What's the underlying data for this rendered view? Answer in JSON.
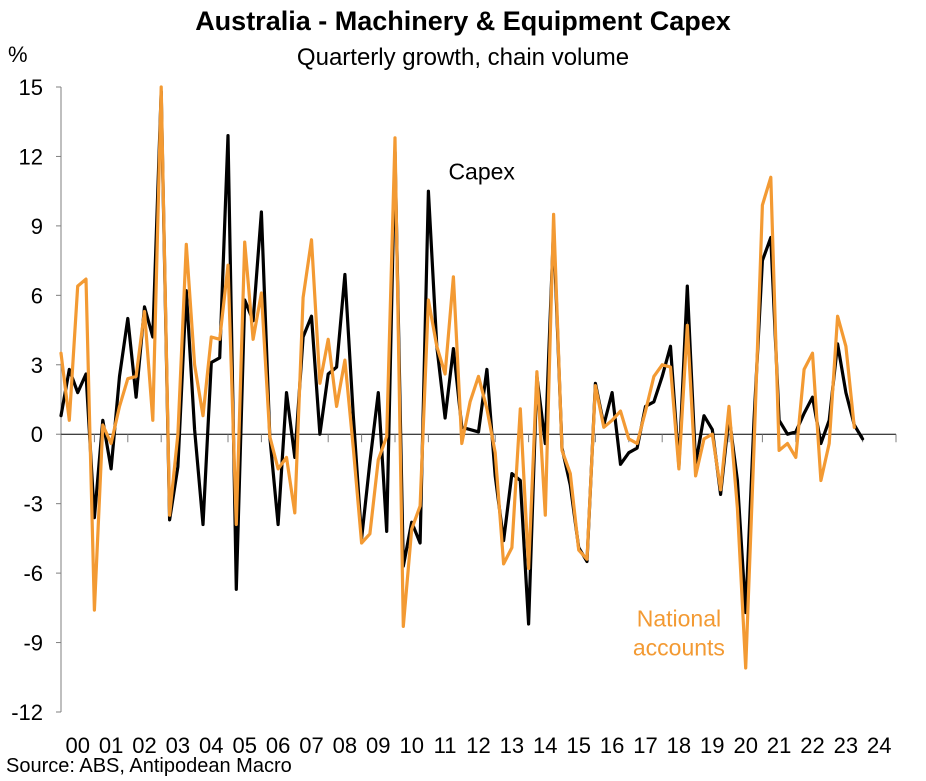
{
  "chart_data": {
    "type": "line",
    "title": "Australia - Machinery & Equipment Capex",
    "subtitle": "Quarterly growth, chain volume",
    "ylabel": "%",
    "ylim": [
      -12,
      15
    ],
    "yticks": [
      15,
      12,
      9,
      6,
      3,
      0,
      -3,
      -6,
      -9,
      -12
    ],
    "xlim": [
      2000,
      2025
    ],
    "xtick_labels": [
      "00",
      "01",
      "02",
      "03",
      "04",
      "05",
      "06",
      "07",
      "08",
      "09",
      "10",
      "11",
      "12",
      "13",
      "14",
      "15",
      "16",
      "17",
      "18",
      "19",
      "20",
      "21",
      "22",
      "23",
      "24"
    ],
    "grid": false,
    "series": [
      {
        "name": "Capex",
        "color": "#000000",
        "x": [
          2000.0,
          2000.25,
          2000.5,
          2000.75,
          2001.0,
          2001.25,
          2001.5,
          2001.75,
          2002.0,
          2002.25,
          2002.5,
          2002.75,
          2003.0,
          2003.25,
          2003.5,
          2003.75,
          2004.0,
          2004.25,
          2004.5,
          2004.75,
          2005.0,
          2005.25,
          2005.5,
          2005.75,
          2006.0,
          2006.25,
          2006.5,
          2006.75,
          2007.0,
          2007.25,
          2007.5,
          2007.75,
          2008.0,
          2008.25,
          2008.5,
          2008.75,
          2009.0,
          2009.25,
          2009.5,
          2009.75,
          2010.0,
          2010.25,
          2010.5,
          2010.75,
          2011.0,
          2011.25,
          2011.5,
          2011.75,
          2012.0,
          2012.25,
          2012.5,
          2012.75,
          2013.0,
          2013.25,
          2013.5,
          2013.75,
          2014.0,
          2014.25,
          2014.5,
          2014.75,
          2015.0,
          2015.25,
          2015.5,
          2015.75,
          2016.0,
          2016.25,
          2016.5,
          2016.75,
          2017.0,
          2017.25,
          2017.5,
          2017.75,
          2018.0,
          2018.25,
          2018.5,
          2018.75,
          2019.0,
          2019.25,
          2019.5,
          2019.75,
          2020.0,
          2020.25,
          2020.5,
          2020.75,
          2021.0,
          2021.25,
          2021.5,
          2021.75,
          2022.0,
          2022.25,
          2022.5,
          2022.75,
          2023.0,
          2023.25,
          2023.5,
          2023.75,
          2024.0
        ],
        "values": [
          0.8,
          2.8,
          1.8,
          2.6,
          -3.6,
          0.6,
          -1.5,
          2.5,
          5.0,
          1.6,
          5.5,
          4.2,
          14.8,
          -3.7,
          -1.4,
          6.2,
          0.2,
          -3.9,
          3.1,
          3.3,
          12.9,
          -6.7,
          5.8,
          4.9,
          9.6,
          -0.1,
          -3.9,
          1.8,
          -1.0,
          4.2,
          5.1,
          0.0,
          2.6,
          2.9,
          6.9,
          0.8,
          -4.5,
          -1.2,
          1.8,
          -4.2,
          12.2,
          -5.7,
          -3.8,
          -4.7,
          10.5,
          3.8,
          0.7,
          3.7,
          0.3,
          0.2,
          0.1,
          2.8,
          -1.8,
          -4.6,
          -1.7,
          -2.0,
          -8.2,
          2.5,
          -0.4,
          8.9,
          -0.6,
          -2.2,
          -4.9,
          -5.5,
          2.2,
          0.4,
          1.8,
          -1.3,
          -0.8,
          -0.6,
          1.2,
          1.4,
          2.5,
          3.8,
          -1.4,
          6.4,
          -1.3,
          0.8,
          0.2,
          -2.6,
          0.8,
          -2.0,
          -7.7,
          0.6,
          7.5,
          8.5,
          0.6,
          0.0,
          0.1,
          0.9,
          1.6,
          -0.4,
          0.6,
          3.9,
          1.8,
          0.4,
          -0.2
        ]
      },
      {
        "name": "National accounts",
        "color": "#F39A33",
        "x": [
          2000.0,
          2000.25,
          2000.5,
          2000.75,
          2001.0,
          2001.25,
          2001.5,
          2001.75,
          2002.0,
          2002.25,
          2002.5,
          2002.75,
          2003.0,
          2003.25,
          2003.5,
          2003.75,
          2004.0,
          2004.25,
          2004.5,
          2004.75,
          2005.0,
          2005.25,
          2005.5,
          2005.75,
          2006.0,
          2006.25,
          2006.5,
          2006.75,
          2007.0,
          2007.25,
          2007.5,
          2007.75,
          2008.0,
          2008.25,
          2008.5,
          2008.75,
          2009.0,
          2009.25,
          2009.5,
          2009.75,
          2010.0,
          2010.25,
          2010.5,
          2010.75,
          2011.0,
          2011.25,
          2011.5,
          2011.75,
          2012.0,
          2012.25,
          2012.5,
          2012.75,
          2013.0,
          2013.25,
          2013.5,
          2013.75,
          2014.0,
          2014.25,
          2014.5,
          2014.75,
          2015.0,
          2015.25,
          2015.5,
          2015.75,
          2016.0,
          2016.25,
          2016.5,
          2016.75,
          2017.0,
          2017.25,
          2017.5,
          2017.75,
          2018.0,
          2018.25,
          2018.5,
          2018.75,
          2019.0,
          2019.25,
          2019.5,
          2019.75,
          2020.0,
          2020.25,
          2020.5,
          2020.75,
          2021.0,
          2021.25,
          2021.5,
          2021.75,
          2022.0,
          2022.25,
          2022.5,
          2022.75,
          2023.0,
          2023.25,
          2023.5,
          2023.75
        ],
        "values": [
          3.5,
          0.6,
          6.4,
          6.7,
          -7.6,
          0.4,
          -0.4,
          1.2,
          2.4,
          2.5,
          5.3,
          0.6,
          15.0,
          -3.5,
          0.0,
          8.2,
          3.0,
          0.8,
          4.2,
          4.1,
          7.3,
          -3.9,
          8.3,
          4.1,
          6.1,
          -0.1,
          -1.5,
          -1.0,
          -3.4,
          5.9,
          8.4,
          2.2,
          4.1,
          1.2,
          3.2,
          -0.6,
          -4.7,
          -4.3,
          -1.1,
          -0.1,
          12.8,
          -8.3,
          -4.1,
          -3.1,
          5.8,
          3.8,
          2.6,
          6.8,
          -0.4,
          1.4,
          2.5,
          1.1,
          -0.8,
          -5.6,
          -4.9,
          1.1,
          -5.8,
          2.7,
          -3.5,
          9.5,
          -0.7,
          -1.7,
          -5.0,
          -5.4,
          2.1,
          0.3,
          0.6,
          1.0,
          -0.2,
          -0.4,
          1.0,
          2.5,
          3.0,
          2.9,
          -1.5,
          4.7,
          -1.8,
          -0.2,
          0.0,
          -2.4,
          1.2,
          -3.2,
          -10.1,
          -0.6,
          9.9,
          11.1,
          -0.7,
          -0.4,
          -1.0,
          2.8,
          3.5,
          -2.0,
          -0.4,
          5.1,
          3.8,
          0.3
        ]
      }
    ],
    "annotations": [
      {
        "text": "Capex",
        "x": 2011.6,
        "y": 11.0
      },
      {
        "text": "National",
        "x": 2018.5,
        "y": -8.3
      },
      {
        "text": "accounts",
        "x": 2018.5,
        "y": -9.55
      }
    ]
  },
  "source": "Source: ABS, Antipodean Macro"
}
